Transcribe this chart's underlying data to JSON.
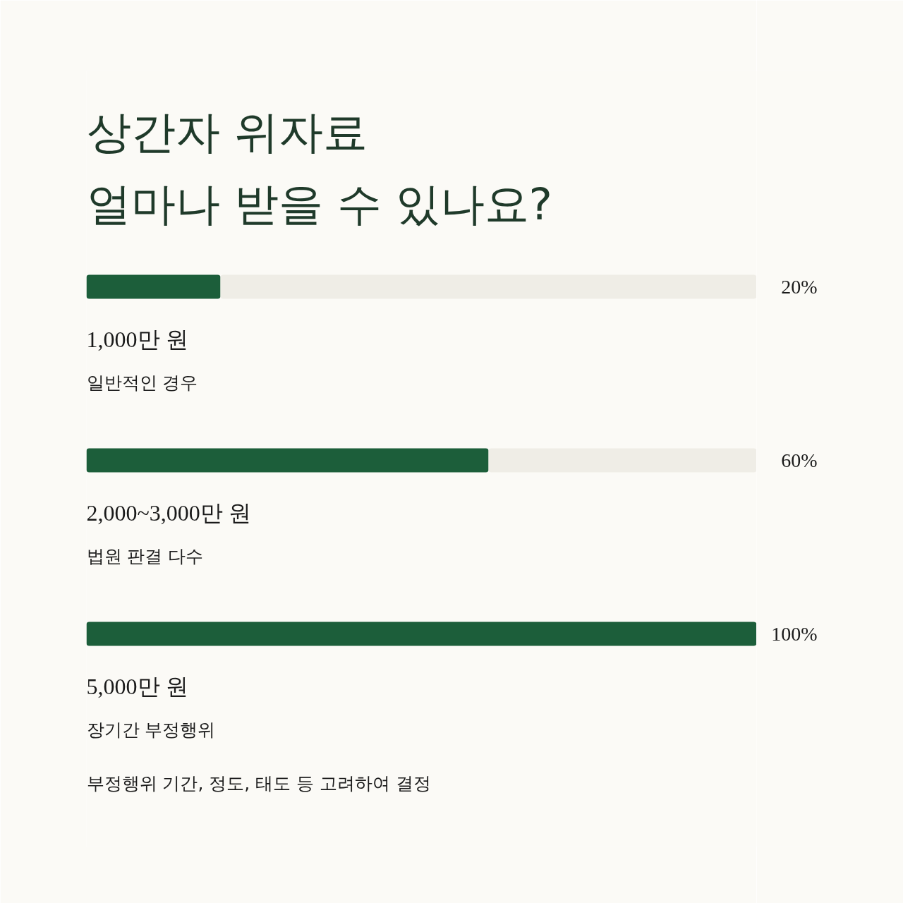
{
  "chart_data": {
    "type": "bar",
    "orientation": "horizontal",
    "stacked": true,
    "title": "상간자 위자료\n얼마나 받을 수 있나요?",
    "categories": [
      "1,000만 원",
      "2,000~3,000만 원",
      "5,000만 원"
    ],
    "series": [
      {
        "color": "#1c5e3a",
        "values": [
          20,
          60,
          100
        ],
        "value_labels": [
          "20%",
          "60%",
          "100%"
        ]
      },
      {
        "color": "#efede6",
        "values": [
          80,
          40,
          null
        ]
      }
    ],
    "xlim": [
      0,
      100
    ],
    "tick_labels": "y",
    "annotations": [
      "일반적인 경우",
      "법원 판결 다수",
      "장기간 부정행위",
      "부정행위 기간, 정도, 태도 등 고려하여 결정"
    ]
  }
}
